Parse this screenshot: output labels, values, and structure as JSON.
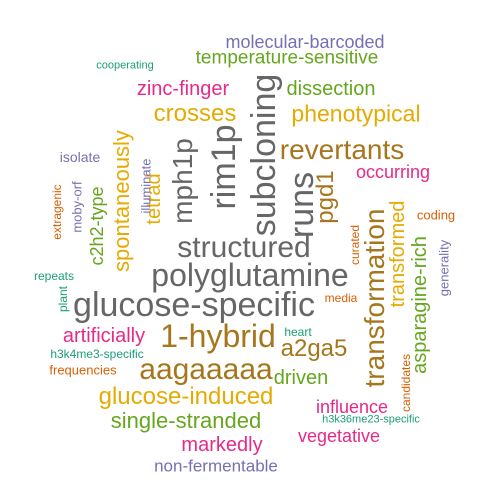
{
  "word_cloud": {
    "colors": {
      "gray": "#666666",
      "brown": "#a6761d",
      "green": "#66a61e",
      "pink": "#e7298a",
      "orange": "#d95f02",
      "purple": "#7570b3",
      "gold": "#e6ab02",
      "teal": "#1b9e77"
    },
    "words": [
      {
        "text": "molecular-barcoded",
        "color": "#7570b3"
      },
      {
        "text": "cooperating",
        "color": "#1b9e77"
      },
      {
        "text": "temperature-sensitive",
        "color": "#66a61e"
      },
      {
        "text": "zinc-finger",
        "color": "#e7298a"
      },
      {
        "text": "dissection",
        "color": "#66a61e"
      },
      {
        "text": "crosses",
        "color": "#e6ab02"
      },
      {
        "text": "phenotypical",
        "color": "#e6ab02"
      },
      {
        "text": "mph1p",
        "color": "#666666"
      },
      {
        "text": "rim1p",
        "color": "#666666"
      },
      {
        "text": "subcloning",
        "color": "#666666"
      },
      {
        "text": "revertants",
        "color": "#a6761d"
      },
      {
        "text": "spontaneously",
        "color": "#e6ab02"
      },
      {
        "text": "isolate",
        "color": "#7570b3"
      },
      {
        "text": "tetrad",
        "color": "#e6ab02"
      },
      {
        "text": "illuminate",
        "color": "#7570b3"
      },
      {
        "text": "runs",
        "color": "#666666"
      },
      {
        "text": "pgd1",
        "color": "#a6761d"
      },
      {
        "text": "occurring",
        "color": "#e7298a"
      },
      {
        "text": "extragenic",
        "color": "#d95f02"
      },
      {
        "text": "moby-orf",
        "color": "#7570b3"
      },
      {
        "text": "c2h2-type",
        "color": "#66a61e"
      },
      {
        "text": "coding",
        "color": "#d95f02"
      },
      {
        "text": "structured",
        "color": "#666666"
      },
      {
        "text": "curated",
        "color": "#d95f02"
      },
      {
        "text": "transformation",
        "color": "#a6761d"
      },
      {
        "text": "transformed",
        "color": "#e6ab02"
      },
      {
        "text": "asparagine-rich",
        "color": "#66a61e"
      },
      {
        "text": "generality",
        "color": "#7570b3"
      },
      {
        "text": "repeats",
        "color": "#1b9e77"
      },
      {
        "text": "plant",
        "color": "#1b9e77"
      },
      {
        "text": "polyglutamine",
        "color": "#666666"
      },
      {
        "text": "media",
        "color": "#d95f02"
      },
      {
        "text": "glucose-specific",
        "color": "#666666"
      },
      {
        "text": "artificially",
        "color": "#e7298a"
      },
      {
        "text": "1-hybrid",
        "color": "#a6761d"
      },
      {
        "text": "heart",
        "color": "#1b9e77"
      },
      {
        "text": "a2ga5",
        "color": "#a6761d"
      },
      {
        "text": "h3k4me3-specific",
        "color": "#1b9e77"
      },
      {
        "text": "aagaaaaa",
        "color": "#a6761d"
      },
      {
        "text": "frequencies",
        "color": "#d95f02"
      },
      {
        "text": "driven",
        "color": "#66a61e"
      },
      {
        "text": "candidates",
        "color": "#d95f02"
      },
      {
        "text": "glucose-induced",
        "color": "#e6ab02"
      },
      {
        "text": "influence",
        "color": "#e7298a"
      },
      {
        "text": "h3k36me23-specific",
        "color": "#1b9e77"
      },
      {
        "text": "single-stranded",
        "color": "#66a61e"
      },
      {
        "text": "vegetative",
        "color": "#e7298a"
      },
      {
        "text": "markedly",
        "color": "#e7298a"
      },
      {
        "text": "non-fermentable",
        "color": "#7570b3"
      }
    ]
  }
}
